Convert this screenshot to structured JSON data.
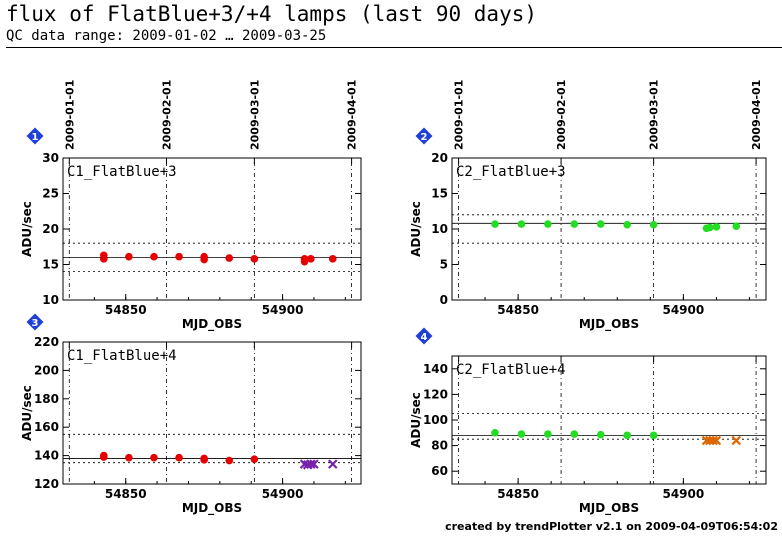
{
  "page": {
    "title": "flux of FlatBlue+3/+4 lamps (last 90 days)",
    "subtitle": "QC data range: 2009-01-02 … 2009-03-25",
    "footer": "created by trendPlotter v2.1 on 2009-04-09T06:54:02"
  },
  "colors": {
    "red": "#e60000",
    "green": "#22dd22",
    "purple": "#7722aa",
    "orange": "#dd6600",
    "badge": "#1f3fd6"
  },
  "chart_data": [
    {
      "type": "scatter",
      "panel": "1",
      "label": "C1_FlatBlue+3",
      "xlabel": "MJD_OBS",
      "ylabel": "ADU/sec",
      "xlim": [
        54830,
        54925
      ],
      "ylim": [
        10,
        30
      ],
      "xticks": [
        54850,
        54900
      ],
      "yticks": [
        10,
        15,
        20,
        25,
        30
      ],
      "date_ticks": [
        {
          "mjd": 54832,
          "label": "2009-01-01"
        },
        {
          "mjd": 54863,
          "label": "2009-02-01"
        },
        {
          "mjd": 54891,
          "label": "2009-03-01"
        },
        {
          "mjd": 54922,
          "label": "2009-04-01"
        }
      ],
      "reference": 16,
      "limits": [
        14,
        18
      ],
      "series": [
        {
          "marker": "dot",
          "color": "#e60000",
          "points": [
            [
              54843,
              16.3
            ],
            [
              54843,
              15.8
            ],
            [
              54851,
              16.1
            ],
            [
              54859,
              16.1
            ],
            [
              54867,
              16.1
            ],
            [
              54875,
              16.1
            ],
            [
              54875,
              15.7
            ],
            [
              54883,
              15.9
            ],
            [
              54891,
              15.8
            ],
            [
              54907,
              15.4
            ],
            [
              54907,
              15.8
            ],
            [
              54909,
              15.8
            ],
            [
              54916,
              15.8
            ]
          ]
        }
      ]
    },
    {
      "type": "scatter",
      "panel": "2",
      "label": "C2_FlatBlue+3",
      "xlabel": "MJD_OBS",
      "ylabel": "ADU/sec",
      "xlim": [
        54830,
        54925
      ],
      "ylim": [
        0,
        20
      ],
      "xticks": [
        54850,
        54900
      ],
      "yticks": [
        0,
        5,
        10,
        15,
        20
      ],
      "date_ticks": [
        {
          "mjd": 54832,
          "label": "2009-01-01"
        },
        {
          "mjd": 54863,
          "label": "2009-02-01"
        },
        {
          "mjd": 54891,
          "label": "2009-03-01"
        },
        {
          "mjd": 54922,
          "label": "2009-04-01"
        }
      ],
      "reference": 10.8,
      "limits": [
        8,
        12
      ],
      "series": [
        {
          "marker": "dot",
          "color": "#22dd22",
          "points": [
            [
              54843,
              10.7
            ],
            [
              54851,
              10.7
            ],
            [
              54859,
              10.7
            ],
            [
              54867,
              10.7
            ],
            [
              54875,
              10.7
            ],
            [
              54883,
              10.6
            ],
            [
              54891,
              10.6
            ],
            [
              54907,
              10.1
            ],
            [
              54908,
              10.2
            ],
            [
              54910,
              10.3
            ],
            [
              54916,
              10.4
            ]
          ]
        }
      ]
    },
    {
      "type": "scatter",
      "panel": "3",
      "label": "C1_FlatBlue+4",
      "xlabel": "MJD_OBS",
      "ylabel": "ADU/sec",
      "xlim": [
        54830,
        54925
      ],
      "ylim": [
        120,
        220
      ],
      "xticks": [
        54850,
        54900
      ],
      "yticks": [
        120,
        140,
        160,
        180,
        200,
        220
      ],
      "date_ticks": [
        {
          "mjd": 54832,
          "label": "2009-01-01"
        },
        {
          "mjd": 54863,
          "label": "2009-02-01"
        },
        {
          "mjd": 54891,
          "label": "2009-03-01"
        },
        {
          "mjd": 54922,
          "label": "2009-04-01"
        }
      ],
      "reference": 138,
      "limits": [
        135,
        155
      ],
      "series": [
        {
          "marker": "dot",
          "color": "#e60000",
          "points": [
            [
              54843,
              140
            ],
            [
              54843,
              139
            ],
            [
              54851,
              138.5
            ],
            [
              54859,
              138.5
            ],
            [
              54867,
              138.5
            ],
            [
              54875,
              138
            ],
            [
              54875,
              137
            ],
            [
              54883,
              136.5
            ],
            [
              54891,
              137.5
            ]
          ]
        },
        {
          "marker": "cross",
          "color": "#7722aa",
          "points": [
            [
              54907,
              134
            ],
            [
              54908,
              133.5
            ],
            [
              54909,
              134
            ],
            [
              54910,
              134
            ],
            [
              54916,
              134
            ]
          ]
        }
      ]
    },
    {
      "type": "scatter",
      "panel": "4",
      "label": "C2_FlatBlue+4",
      "xlabel": "MJD_OBS",
      "ylabel": "ADU/sec",
      "xlim": [
        54830,
        54925
      ],
      "ylim": [
        50,
        150
      ],
      "xticks": [
        54850,
        54900
      ],
      "yticks": [
        60,
        80,
        100,
        120,
        140
      ],
      "date_ticks": [
        {
          "mjd": 54832,
          "label": "2009-01-01"
        },
        {
          "mjd": 54863,
          "label": "2009-02-01"
        },
        {
          "mjd": 54891,
          "label": "2009-03-01"
        },
        {
          "mjd": 54922,
          "label": "2009-04-01"
        }
      ],
      "reference": 88,
      "limits": [
        85,
        105
      ],
      "series": [
        {
          "marker": "dot",
          "color": "#22dd22",
          "points": [
            [
              54843,
              90
            ],
            [
              54851,
              89
            ],
            [
              54859,
              89
            ],
            [
              54867,
              89
            ],
            [
              54875,
              88.5
            ],
            [
              54883,
              88
            ],
            [
              54891,
              88
            ]
          ]
        },
        {
          "marker": "cross",
          "color": "#dd6600",
          "points": [
            [
              54907,
              84
            ],
            [
              54908,
              84
            ],
            [
              54909,
              84
            ],
            [
              54910,
              84
            ],
            [
              54916,
              84
            ]
          ]
        }
      ]
    }
  ]
}
